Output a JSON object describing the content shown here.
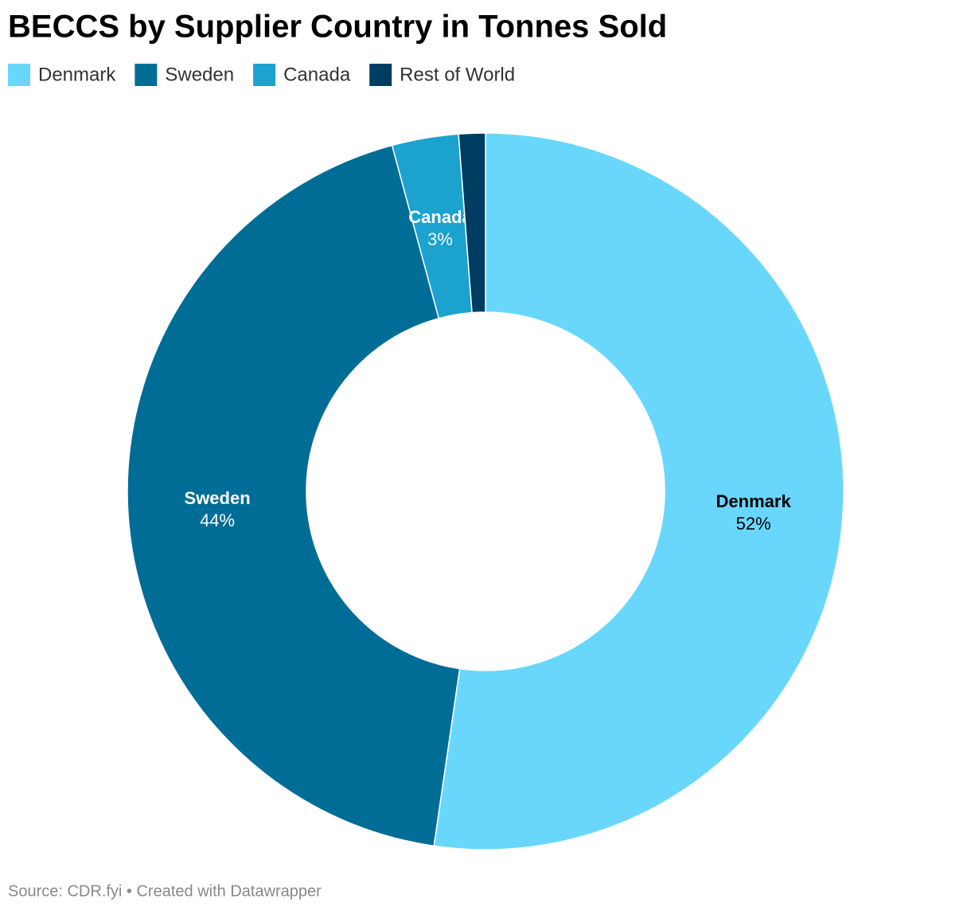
{
  "chart_data": {
    "type": "donut",
    "title": "BECCS by Supplier Country in Tonnes Sold",
    "categories": [
      "Denmark",
      "Sweden",
      "Canada",
      "Rest of World"
    ],
    "values": [
      52.3,
      43.5,
      3.0,
      1.2
    ],
    "value_labels": [
      "52%",
      "44%",
      "3%",
      null
    ],
    "colors": [
      "#69d7fc",
      "#006d96",
      "#1ba2cf",
      "#003d62"
    ],
    "label_colors": [
      "#000000",
      "#ffffff",
      "#ffffff",
      "#ffffff"
    ],
    "source": "Source: CDR.fyi • Created with Datawrapper"
  }
}
